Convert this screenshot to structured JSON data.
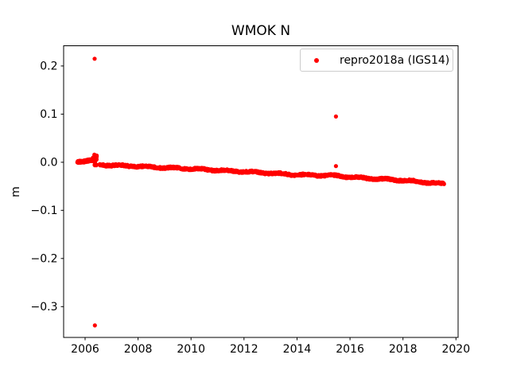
{
  "figure": {
    "background": "#ffffff",
    "frame_color": "#000000",
    "legend_border_color": "#cccccc"
  },
  "chart_data": {
    "type": "scatter",
    "title": "WMOK N",
    "xlabel": "",
    "ylabel": "m",
    "xlim": [
      2005.19,
      2020.08
    ],
    "ylim": [
      -0.364,
      0.242
    ],
    "xticks": [
      2006,
      2008,
      2010,
      2012,
      2014,
      2016,
      2018,
      2020
    ],
    "yticks": [
      0.2,
      0.1,
      0.0,
      -0.1,
      -0.2,
      -0.3
    ],
    "grid": false,
    "legend": {
      "position": "upper right",
      "entries": [
        {
          "label": "repro2018a (IGS14)",
          "color": "#ff0000",
          "marker": "dot"
        }
      ]
    },
    "series": [
      {
        "name": "repro2018a (IGS14)",
        "color": "#ff0000",
        "marker": "dot",
        "marker_radius_px": 2.6,
        "seed": 20180,
        "annual_amplitude": 0.0012,
        "segments": [
          {
            "x_start": 2005.71,
            "x_end": 2006.34,
            "points_per_year": 160,
            "noise": 0.0022,
            "trend": [
              [
                2005.71,
                0.002
              ],
              [
                2006.05,
                0.003
              ],
              [
                2006.34,
                0.004
              ]
            ]
          },
          {
            "x_start": 2006.55,
            "x_end": 2019.55,
            "points_per_year": 90,
            "noise": 0.002,
            "trend": [
              [
                2006.55,
                -0.005
              ],
              [
                2008.0,
                -0.0085
              ],
              [
                2010.0,
                -0.0135
              ],
              [
                2012.0,
                -0.0195
              ],
              [
                2014.0,
                -0.026
              ],
              [
                2015.5,
                -0.028
              ],
              [
                2016.0,
                -0.031
              ],
              [
                2018.0,
                -0.0375
              ],
              [
                2019.0,
                -0.0425
              ],
              [
                2019.55,
                -0.045
              ]
            ]
          }
        ],
        "clusters": [
          {
            "x_start": 2006.28,
            "x_end": 2006.44,
            "y_min": -0.008,
            "y_max": 0.02,
            "count": 28
          }
        ],
        "outliers": [
          [
            2006.36,
            0.215
          ],
          [
            2006.37,
            -0.339
          ],
          [
            2015.47,
            0.095
          ],
          [
            2015.47,
            -0.008
          ]
        ]
      }
    ]
  }
}
